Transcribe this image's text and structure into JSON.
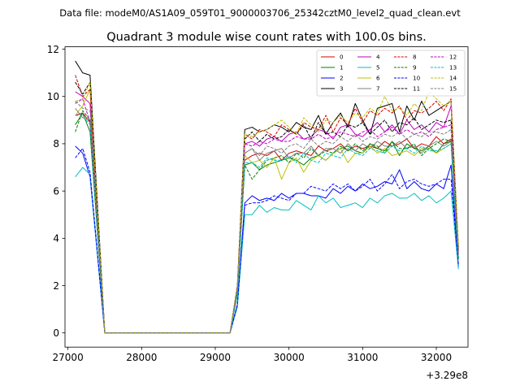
{
  "chart_data": {
    "type": "line",
    "supertitle": "Data file: modeM0/AS1A09_059T01_9000003706_25342cztM0_level2_quad_clean.evt",
    "title": "Quadrant 3 module wise count rates with 100.0s bins.",
    "xlabel": "",
    "ylabel": "",
    "x_offset_label": "+3.29e8",
    "xlim": [
      26960,
      32430
    ],
    "ylim": [
      -0.6,
      12.1
    ],
    "x_ticks": [
      27000,
      28000,
      29000,
      30000,
      31000,
      32000
    ],
    "x_tick_labels": [
      "27000",
      "28000",
      "29000",
      "30000",
      "31000",
      "32000"
    ],
    "y_ticks": [
      0,
      2,
      4,
      6,
      8,
      10,
      12
    ],
    "y_tick_labels": [
      "0",
      "2",
      "4",
      "6",
      "8",
      "10",
      "12"
    ],
    "legend_position": "top-right",
    "x": [
      27100,
      27200,
      27300,
      27500,
      29200,
      29300,
      29400,
      29500,
      29600,
      29700,
      29800,
      29900,
      30000,
      30100,
      30200,
      30300,
      30400,
      30500,
      30600,
      30700,
      30800,
      30900,
      31000,
      31100,
      31200,
      31300,
      31400,
      31500,
      31600,
      31700,
      31800,
      31900,
      32000,
      32100,
      32200,
      32300
    ],
    "series": [
      {
        "name": "0",
        "color": "#d40000",
        "dashed": false,
        "values": [
          9.2,
          9.3,
          8.9,
          0,
          0,
          1.8,
          7.3,
          7.5,
          7.6,
          7.5,
          7.7,
          7.3,
          7.6,
          7.7,
          7.6,
          7.5,
          7.9,
          7.7,
          7.8,
          8.0,
          7.7,
          7.9,
          7.8,
          7.9,
          7.8,
          8.1,
          7.9,
          8.0,
          8.2,
          7.8,
          8.0,
          7.9,
          8.3,
          8.0,
          8.2,
          3.3
        ]
      },
      {
        "name": "1",
        "color": "#008000",
        "dashed": false,
        "values": [
          8.8,
          9.3,
          8.5,
          0,
          0,
          1.7,
          7.1,
          7.2,
          6.9,
          7.1,
          7.2,
          7.3,
          7.4,
          7.3,
          7.1,
          7.4,
          7.5,
          7.3,
          7.6,
          7.8,
          7.9,
          7.7,
          7.6,
          8.0,
          7.8,
          7.7,
          8.1,
          7.5,
          8.0,
          7.8,
          7.7,
          7.9,
          7.6,
          8.0,
          8.1,
          3.2
        ]
      },
      {
        "name": "2",
        "color": "#0000ff",
        "dashed": false,
        "values": [
          7.9,
          7.6,
          6.6,
          0,
          0,
          1.2,
          5.5,
          5.8,
          5.6,
          5.7,
          5.6,
          5.9,
          5.7,
          5.9,
          5.9,
          5.8,
          5.8,
          5.7,
          6.1,
          5.9,
          6.2,
          6.0,
          6.3,
          6.1,
          6.2,
          6.4,
          6.3,
          6.9,
          6.1,
          6.4,
          6.1,
          6.0,
          6.3,
          6.1,
          7.1,
          2.8
        ]
      },
      {
        "name": "3",
        "color": "#000000",
        "dashed": false,
        "values": [
          11.5,
          11.0,
          10.9,
          0,
          0,
          2.0,
          8.6,
          8.7,
          8.5,
          8.6,
          8.8,
          8.7,
          8.5,
          8.9,
          8.7,
          8.6,
          9.2,
          8.4,
          8.9,
          9.3,
          8.7,
          9.7,
          9.0,
          8.4,
          9.5,
          9.6,
          9.7,
          8.5,
          9.6,
          9.0,
          9.8,
          9.2,
          9.4,
          9.6,
          9.8,
          3.5
        ]
      },
      {
        "name": "4",
        "color": "#bf00bf",
        "dashed": false,
        "values": [
          10.2,
          10.0,
          9.7,
          0,
          0,
          1.9,
          8.0,
          8.1,
          7.9,
          8.2,
          8.3,
          8.1,
          8.4,
          8.5,
          8.2,
          8.3,
          8.6,
          8.5,
          8.2,
          8.7,
          8.8,
          8.4,
          8.3,
          8.6,
          8.9,
          8.5,
          8.8,
          8.4,
          9.0,
          8.6,
          8.8,
          8.5,
          8.9,
          8.7,
          9.6,
          3.4
        ]
      },
      {
        "name": "5",
        "color": "#00bfbf",
        "dashed": false,
        "values": [
          6.6,
          7.0,
          6.7,
          0,
          0,
          1.1,
          5.0,
          5.0,
          5.4,
          5.1,
          5.3,
          5.2,
          5.2,
          5.6,
          5.4,
          5.2,
          5.8,
          5.5,
          5.7,
          5.3,
          5.4,
          5.5,
          5.3,
          5.7,
          5.5,
          5.8,
          5.9,
          5.7,
          5.7,
          5.9,
          5.6,
          5.8,
          5.5,
          5.7,
          6.0,
          2.7
        ]
      },
      {
        "name": "6",
        "color": "#bfbf00",
        "dashed": false,
        "values": [
          9.2,
          9.6,
          10.3,
          0,
          0,
          1.8,
          7.5,
          7.2,
          7.3,
          7.0,
          7.4,
          6.5,
          7.2,
          7.4,
          6.8,
          7.3,
          7.5,
          7.3,
          7.6,
          7.8,
          7.2,
          7.6,
          7.6,
          7.9,
          7.6,
          7.8,
          7.5,
          7.6,
          7.7,
          7.5,
          7.8,
          7.8,
          7.6,
          7.8,
          8.0,
          3.1
        ]
      },
      {
        "name": "7",
        "color": "#808080",
        "dashed": false,
        "values": [
          9.5,
          9.1,
          9.0,
          0,
          0,
          1.9,
          7.6,
          7.8,
          7.3,
          7.6,
          7.7,
          7.8,
          7.4,
          7.6,
          7.6,
          7.9,
          7.5,
          7.8,
          7.8,
          7.6,
          8.0,
          7.7,
          8.0,
          7.8,
          8.1,
          7.9,
          7.9,
          8.1,
          7.8,
          7.9,
          7.6,
          7.9,
          8.1,
          7.9,
          8.1,
          3.1
        ]
      },
      {
        "name": "8",
        "color": "#d40000",
        "dashed": true,
        "values": [
          10.9,
          10.0,
          10.3,
          0,
          0,
          2.0,
          8.4,
          8.2,
          8.6,
          8.5,
          8.3,
          8.8,
          8.6,
          8.4,
          8.9,
          8.7,
          8.6,
          9.2,
          8.5,
          9.1,
          8.8,
          9.5,
          8.9,
          9.4,
          9.2,
          9.5,
          9.3,
          9.6,
          9.0,
          9.4,
          9.3,
          9.5,
          9.8,
          9.4,
          9.9,
          3.6
        ]
      },
      {
        "name": "9",
        "color": "#008000",
        "dashed": true,
        "values": [
          8.5,
          9.4,
          9.0,
          0,
          0,
          1.8,
          7.1,
          6.5,
          6.9,
          7.3,
          7.4,
          7.5,
          7.2,
          7.6,
          7.4,
          7.8,
          7.5,
          7.7,
          7.6,
          7.9,
          7.7,
          8.0,
          7.7,
          8.0,
          7.9,
          7.6,
          8.1,
          7.8,
          7.8,
          8.0,
          7.5,
          7.8,
          8.0,
          8.2,
          8.1,
          3.2
        ]
      },
      {
        "name": "10",
        "color": "#0000ff",
        "dashed": true,
        "values": [
          7.4,
          7.8,
          6.8,
          0,
          0,
          1.2,
          5.4,
          5.5,
          5.5,
          5.6,
          5.8,
          5.7,
          5.6,
          5.9,
          5.9,
          6.2,
          6.1,
          6.0,
          6.3,
          6.1,
          6.3,
          6.0,
          6.2,
          6.5,
          6.0,
          6.3,
          6.7,
          6.1,
          6.4,
          6.5,
          6.3,
          6.2,
          6.3,
          6.5,
          6.5,
          2.9
        ]
      },
      {
        "name": "11",
        "color": "#000000",
        "dashed": true,
        "values": [
          10.6,
          10.1,
          10.6,
          0,
          0,
          1.9,
          8.2,
          8.5,
          8.1,
          8.4,
          8.2,
          8.3,
          8.6,
          8.4,
          8.8,
          8.2,
          8.9,
          8.4,
          8.5,
          8.3,
          8.8,
          8.7,
          8.9,
          8.4,
          8.7,
          9.0,
          8.5,
          8.9,
          8.8,
          9.1,
          8.6,
          8.8,
          9.0,
          8.9,
          9.0,
          3.5
        ]
      },
      {
        "name": "12",
        "color": "#bf00bf",
        "dashed": true,
        "values": [
          9.7,
          9.9,
          8.9,
          0,
          0,
          1.9,
          8.0,
          7.9,
          8.1,
          8.0,
          8.2,
          8.1,
          8.1,
          8.3,
          8.2,
          8.2,
          8.4,
          8.2,
          8.3,
          8.5,
          8.4,
          8.3,
          8.5,
          8.6,
          8.3,
          8.5,
          8.7,
          8.4,
          8.6,
          8.4,
          8.5,
          8.3,
          8.6,
          8.7,
          8.8,
          3.4
        ]
      },
      {
        "name": "13",
        "color": "#00bfbf",
        "dashed": true,
        "values": [
          9.2,
          9.2,
          8.8,
          0,
          0,
          1.6,
          7.2,
          7.2,
          7.0,
          7.4,
          7.3,
          7.3,
          7.5,
          7.2,
          7.6,
          7.3,
          7.2,
          7.6,
          7.5,
          7.4,
          7.8,
          7.6,
          7.5,
          7.8,
          7.7,
          7.6,
          7.9,
          7.7,
          7.8,
          7.6,
          7.9,
          7.7,
          7.7,
          7.8,
          8.0,
          3.1
        ]
      },
      {
        "name": "14",
        "color": "#bfbf00",
        "dashed": true,
        "values": [
          9.8,
          9.9,
          10.6,
          0,
          0,
          2.0,
          8.4,
          8.3,
          8.5,
          8.6,
          8.8,
          9.0,
          8.7,
          8.4,
          9.1,
          8.8,
          8.5,
          9.0,
          8.9,
          9.2,
          8.9,
          9.3,
          9.1,
          9.5,
          9.3,
          10.0,
          9.4,
          9.5,
          9.2,
          9.7,
          9.4,
          10.2,
          9.9,
          9.6,
          9.8,
          3.7
        ]
      },
      {
        "name": "15",
        "color": "#808080",
        "dashed": true,
        "values": [
          9.8,
          9.5,
          9.4,
          0,
          0,
          1.9,
          7.6,
          7.8,
          7.5,
          7.9,
          7.8,
          7.6,
          7.9,
          8.0,
          7.8,
          8.2,
          7.9,
          8.1,
          8.0,
          8.3,
          8.1,
          8.4,
          8.1,
          8.3,
          8.2,
          8.4,
          8.3,
          8.5,
          8.2,
          8.4,
          8.3,
          8.5,
          8.5,
          8.4,
          8.6,
          3.3
        ]
      }
    ]
  }
}
